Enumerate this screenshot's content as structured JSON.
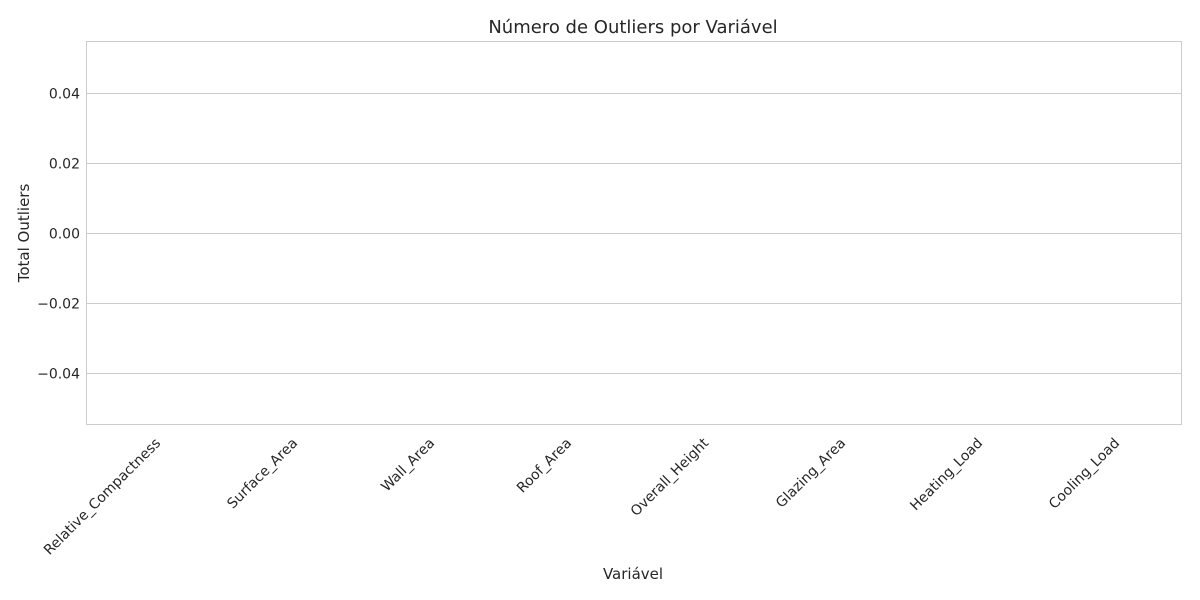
{
  "chart_data": {
    "type": "bar",
    "title": "Número de Outliers por Variável",
    "xlabel": "Variável",
    "ylabel": "Total Outliers",
    "categories": [
      "Relative_Compactness",
      "Surface_Area",
      "Wall_Area",
      "Roof_Area",
      "Overall_Height",
      "Glazing_Area",
      "Heating_Load",
      "Cooling_Load"
    ],
    "values": [
      0,
      0,
      0,
      0,
      0,
      0,
      0,
      0
    ],
    "ylim": [
      -0.055,
      0.055
    ],
    "yticks": [
      0.04,
      0.02,
      0.0,
      -0.02,
      -0.04
    ],
    "ytick_labels": [
      "0.04",
      "0.02",
      "0.00",
      "−0.02",
      "−0.04"
    ],
    "grid": "horizontal",
    "colors": {
      "grid": "#cccccc",
      "frame": "#cccccc",
      "text": "#262626",
      "bar": "#4c72b0"
    }
  }
}
